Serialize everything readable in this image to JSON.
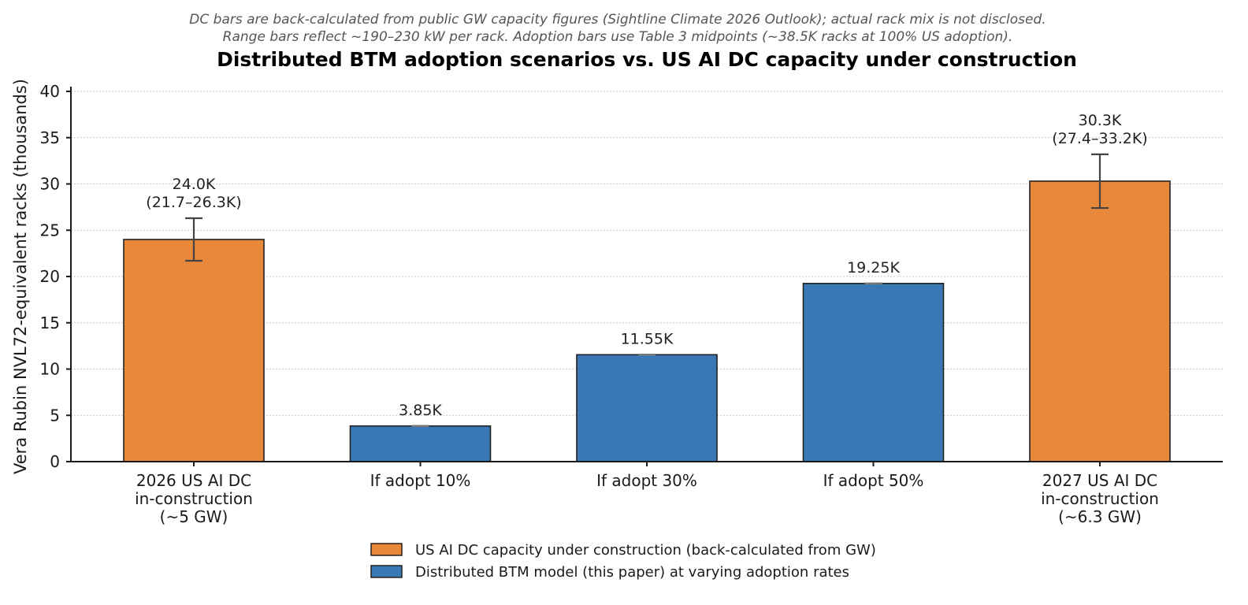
{
  "chart_data": {
    "type": "bar",
    "subtitle_lines": [
      "DC bars are back-calculated from public GW capacity figures (Sightline Climate 2026 Outlook); actual rack mix is not disclosed.",
      "Range bars reflect ~190–230 kW per rack. Adoption bars use Table 3 midpoints (~38.5K racks at 100% US adoption)."
    ],
    "title": "Distributed BTM adoption scenarios vs. US AI DC capacity under construction",
    "xlabel": "",
    "ylabel": "Vera Rubin NVL72-equivalent racks (thousands)",
    "ylim": [
      0,
      40
    ],
    "yticks": [
      0,
      5,
      10,
      15,
      20,
      25,
      30,
      35,
      40
    ],
    "grid": "y-dotted",
    "categories": [
      [
        "2026 US AI DC",
        "in-construction",
        "(~5 GW)"
      ],
      [
        "If adopt 10%"
      ],
      [
        "If adopt 30%"
      ],
      [
        "If adopt 50%"
      ],
      [
        "2027 US AI DC",
        "in-construction",
        "(~6.3 GW)"
      ]
    ],
    "bars": [
      {
        "value": 24.0,
        "low": 21.7,
        "high": 26.3,
        "series": 0,
        "labels": [
          "24.0K",
          "(21.7–26.3K)"
        ]
      },
      {
        "value": 3.85,
        "low": 3.85,
        "high": 3.85,
        "series": 1,
        "labels": [
          "3.85K"
        ]
      },
      {
        "value": 11.55,
        "low": 11.55,
        "high": 11.55,
        "series": 1,
        "labels": [
          "11.55K"
        ]
      },
      {
        "value": 19.25,
        "low": 19.25,
        "high": 19.25,
        "series": 1,
        "labels": [
          "19.25K"
        ]
      },
      {
        "value": 30.3,
        "low": 27.4,
        "high": 33.2,
        "series": 0,
        "labels": [
          "30.3K",
          "(27.4–33.2K)"
        ]
      }
    ],
    "series": [
      {
        "name": "US AI DC capacity under construction (back-calculated from GW)",
        "color": "#E8883A",
        "values": [
          24.0,
          null,
          null,
          null,
          30.3
        ]
      },
      {
        "name": "Distributed BTM model (this paper) at varying adoption rates",
        "color": "#3A78B5",
        "values": [
          null,
          3.85,
          11.55,
          19.25,
          null
        ]
      }
    ],
    "legend_position": "bottom-center"
  }
}
